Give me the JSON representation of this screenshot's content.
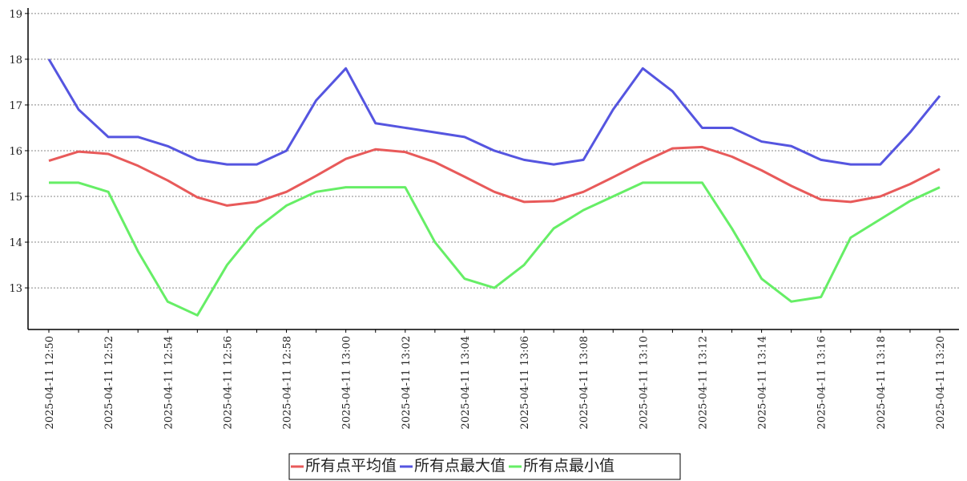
{
  "chart_data": {
    "type": "line",
    "categories": [
      "2025-04-11  12:50",
      null,
      "2025-04-11  12:52",
      null,
      "2025-04-11  12:54",
      null,
      "2025-04-11  12:56",
      null,
      "2025-04-11  12:58",
      null,
      "2025-04-11  13:00",
      null,
      "2025-04-11  13:02",
      null,
      "2025-04-11  13:04",
      null,
      "2025-04-11  13:06",
      null,
      "2025-04-11  13:08",
      null,
      "2025-04-11  13:10",
      null,
      "2025-04-11  13:12",
      null,
      "2025-04-11  13:14",
      null,
      "2025-04-11  13:16",
      null,
      "2025-04-11  13:18",
      null,
      "2025-04-11  13:20"
    ],
    "series": [
      {
        "name": "所有点平均值",
        "color": "#e85a5a",
        "values": [
          15.78,
          15.98,
          15.93,
          15.67,
          15.35,
          14.98,
          14.8,
          14.88,
          15.1,
          15.45,
          15.82,
          16.03,
          15.97,
          15.75,
          15.43,
          15.1,
          14.88,
          14.9,
          15.1,
          15.42,
          15.75,
          16.05,
          16.08,
          15.87,
          15.57,
          15.23,
          14.93,
          14.88,
          15.0,
          15.27,
          15.6
        ]
      },
      {
        "name": "所有点最大值",
        "color": "#5555e0",
        "values": [
          18.0,
          16.9,
          16.3,
          16.3,
          16.1,
          15.8,
          15.7,
          15.7,
          16.0,
          17.1,
          17.8,
          16.6,
          16.5,
          16.4,
          16.3,
          16.0,
          15.8,
          15.7,
          15.8,
          16.9,
          17.8,
          17.3,
          16.5,
          16.5,
          16.2,
          16.1,
          15.8,
          15.7,
          15.7,
          16.4,
          17.2
        ]
      },
      {
        "name": "所有点最小值",
        "color": "#66ee66",
        "values": [
          15.3,
          15.3,
          15.1,
          13.8,
          12.7,
          12.4,
          13.5,
          14.3,
          14.8,
          15.1,
          15.2,
          15.2,
          15.2,
          14.0,
          13.2,
          13.0,
          13.5,
          14.3,
          14.7,
          15.0,
          15.3,
          15.3,
          15.3,
          14.3,
          13.2,
          12.7,
          12.8,
          14.1,
          14.5,
          14.9,
          15.2
        ]
      }
    ],
    "ylim": [
      12.09,
      19.12
    ],
    "yticks": [
      13,
      14,
      15,
      16,
      17,
      18,
      19
    ],
    "grid": true
  }
}
